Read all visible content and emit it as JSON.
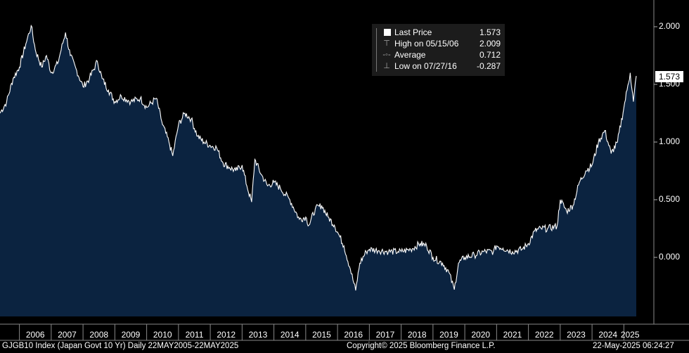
{
  "legend": {
    "last_label": "Last Price",
    "last_value": "1.573",
    "high_label": "High on 05/15/06",
    "high_value": "2.009",
    "avg_label": "Average",
    "avg_value": "0.712",
    "low_label": "Low on 07/27/16",
    "low_value": "-0.287"
  },
  "last_tag": "1.573",
  "footer": {
    "left": "GJGB10 Index (Japan Govt 10 Yr)  Daily 22MAY2005-22MAY2025",
    "center": "Copyright© 2025 Bloomberg Finance L.P.",
    "right": "22-May-2025 06:24:27"
  },
  "colors": {
    "background": "#000000",
    "area_fill": "#0b2340",
    "line": "#ffffff",
    "grid": "#404040"
  },
  "chart_data": {
    "type": "area",
    "title": "",
    "xlabel": "",
    "ylabel": "",
    "x_tick_labels": [
      "2006",
      "2007",
      "2008",
      "2009",
      "2010",
      "2011",
      "2012",
      "2013",
      "2014",
      "2015",
      "2016",
      "2017",
      "2018",
      "2019",
      "2020",
      "2021",
      "2022",
      "2023",
      "2024",
      "2025"
    ],
    "y_tick_labels": [
      "2.000",
      "1.500",
      "1.000",
      "0.500",
      "0.000"
    ],
    "y_ticks": [
      2.0,
      1.5,
      1.0,
      0.5,
      0.0
    ],
    "xlim": [
      2005.39,
      2025.39
    ],
    "ylim": [
      -0.45,
      2.1
    ],
    "grid": false,
    "series": [
      {
        "x": [
          2005.39,
          2005.6,
          2005.8,
          2006.0,
          2006.2,
          2006.37,
          2006.5,
          2006.7,
          2006.85,
          2007.0,
          2007.2,
          2007.45,
          2007.6,
          2007.8,
          2008.0,
          2008.2,
          2008.45,
          2008.6,
          2008.8,
          2009.0,
          2009.2,
          2009.5,
          2009.8,
          2010.0,
          2010.3,
          2010.5,
          2010.7,
          2010.82,
          2011.0,
          2011.2,
          2011.4,
          2011.6,
          2011.8,
          2012.0,
          2012.2,
          2012.4,
          2012.6,
          2012.8,
          2013.0,
          2013.15,
          2013.3,
          2013.4,
          2013.6,
          2013.8,
          2014.0,
          2014.2,
          2014.5,
          2014.8,
          2015.0,
          2015.1,
          2015.3,
          2015.5,
          2015.7,
          2015.9,
          2016.0,
          2016.2,
          2016.4,
          2016.57,
          2016.7,
          2016.9,
          2017.0,
          2017.3,
          2017.6,
          2017.9,
          2018.0,
          2018.3,
          2018.6,
          2018.8,
          2019.0,
          2019.3,
          2019.5,
          2019.67,
          2019.8,
          2020.0,
          2020.3,
          2020.6,
          2020.9,
          2021.0,
          2021.2,
          2021.5,
          2021.8,
          2022.0,
          2022.2,
          2022.4,
          2022.6,
          2022.9,
          2023.0,
          2023.2,
          2023.4,
          2023.6,
          2023.8,
          2024.0,
          2024.2,
          2024.4,
          2024.6,
          2024.8,
          2025.0,
          2025.1,
          2025.2,
          2025.3,
          2025.39
        ],
        "values": [
          1.25,
          1.35,
          1.55,
          1.65,
          1.85,
          2.009,
          1.8,
          1.65,
          1.75,
          1.6,
          1.68,
          1.95,
          1.75,
          1.62,
          1.48,
          1.55,
          1.7,
          1.55,
          1.45,
          1.35,
          1.4,
          1.35,
          1.38,
          1.3,
          1.38,
          1.15,
          1.0,
          0.88,
          1.15,
          1.25,
          1.2,
          1.05,
          1.0,
          0.97,
          0.95,
          0.82,
          0.78,
          0.75,
          0.8,
          0.62,
          0.48,
          0.85,
          0.72,
          0.62,
          0.65,
          0.6,
          0.5,
          0.33,
          0.35,
          0.28,
          0.42,
          0.45,
          0.35,
          0.28,
          0.22,
          0.1,
          -0.1,
          -0.287,
          -0.05,
          0.05,
          0.07,
          0.06,
          0.05,
          0.05,
          0.05,
          0.07,
          0.12,
          0.1,
          0.0,
          -0.05,
          -0.13,
          -0.28,
          -0.05,
          0.0,
          0.02,
          0.05,
          0.05,
          0.1,
          0.08,
          0.05,
          0.07,
          0.12,
          0.23,
          0.25,
          0.25,
          0.27,
          0.5,
          0.4,
          0.45,
          0.65,
          0.75,
          0.8,
          1.0,
          1.1,
          0.9,
          1.0,
          1.3,
          1.45,
          1.6,
          1.35,
          1.573
        ]
      }
    ]
  }
}
